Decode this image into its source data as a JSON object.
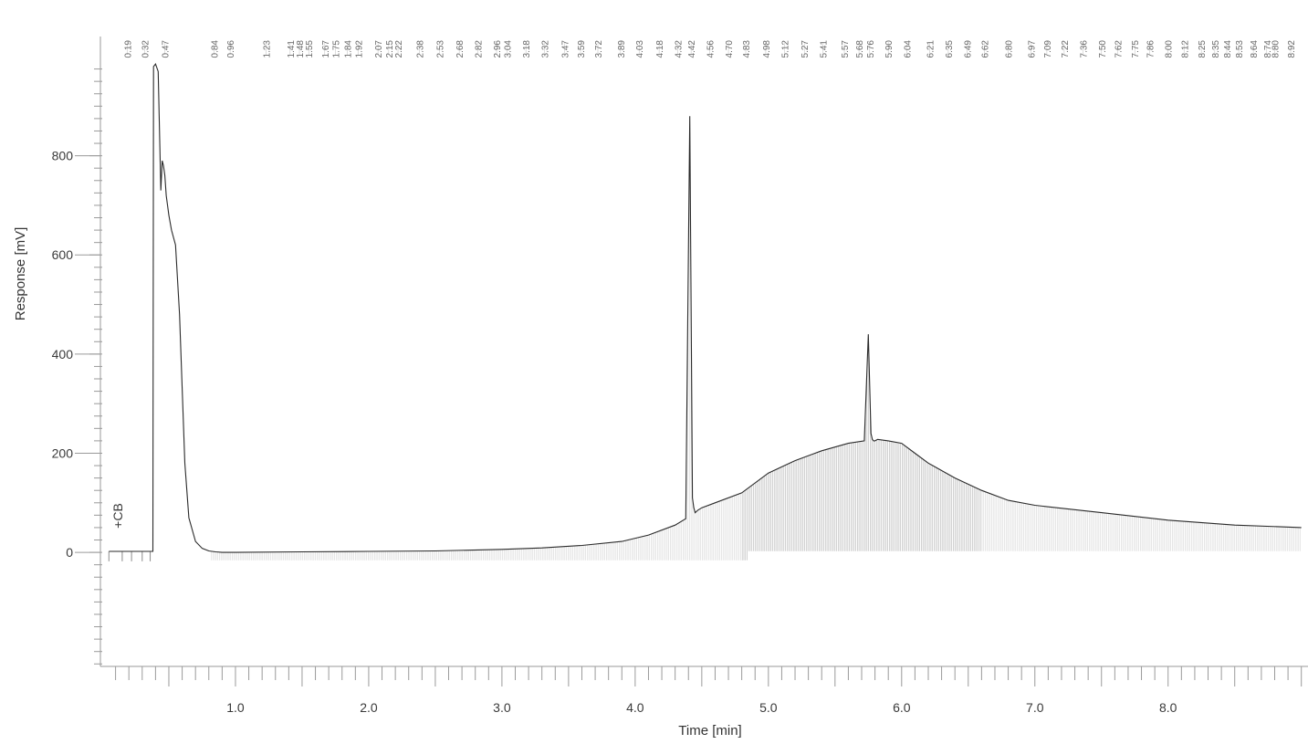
{
  "chart_data": {
    "type": "line",
    "xlabel": "Time [min]",
    "ylabel": "Response [mV]",
    "xlim": [
      0.0,
      9.05
    ],
    "ylim": [
      -230,
      1000
    ],
    "x_ticks": [
      "1.0",
      "2.0",
      "3.0",
      "4.0",
      "5.0",
      "6.0",
      "7.0",
      "8.0"
    ],
    "y_ticks": [
      "0",
      "200",
      "400",
      "600",
      "800"
    ],
    "annotation": "+CB",
    "grid": false,
    "series": [
      {
        "x": [
          0.05,
          0.38,
          0.385,
          0.4,
          0.42,
          0.44,
          0.45,
          0.46,
          0.47,
          0.48,
          0.5,
          0.52,
          0.55,
          0.58,
          0.6,
          0.62,
          0.65,
          0.7,
          0.75,
          0.8,
          0.85,
          0.9,
          1.0,
          1.5,
          2.0,
          2.5,
          3.0,
          3.3,
          3.6,
          3.9,
          4.1,
          4.3,
          4.38,
          4.41,
          4.43,
          4.44,
          4.45,
          4.47,
          4.5,
          4.6,
          4.8,
          5.0,
          5.2,
          5.4,
          5.6,
          5.72,
          5.75,
          5.77,
          5.78,
          5.79,
          5.8,
          5.82,
          5.9,
          6.0,
          6.1,
          6.2,
          6.4,
          6.6,
          6.8,
          7.0,
          7.5,
          8.0,
          8.5,
          9.0
        ],
        "y": [
          2,
          2,
          980,
          985,
          970,
          730,
          790,
          780,
          760,
          720,
          680,
          650,
          620,
          480,
          330,
          180,
          70,
          22,
          8,
          3,
          1,
          0,
          0,
          1,
          2,
          3,
          6,
          9,
          14,
          22,
          35,
          55,
          68,
          880,
          110,
          90,
          80,
          85,
          90,
          100,
          120,
          160,
          185,
          205,
          220,
          225,
          440,
          240,
          228,
          225,
          225,
          228,
          225,
          220,
          200,
          180,
          150,
          125,
          105,
          95,
          80,
          65,
          55,
          50
        ]
      }
    ],
    "peak_labels": [
      "0.19",
      "0.32",
      "0.47",
      "0.84",
      "0.96",
      "1.23",
      "1.41",
      "1.48",
      "1.55",
      "1.67",
      "1.75",
      "1.84",
      "1.92",
      "2.07",
      "2.15",
      "2.22",
      "2.38",
      "2.53",
      "2.68",
      "2.82",
      "2.96",
      "3.04",
      "3.18",
      "3.32",
      "3.47",
      "3.59",
      "3.72",
      "3.89",
      "4.03",
      "4.18",
      "4.32",
      "4.42",
      "4.56",
      "4.70",
      "4.83",
      "4.98",
      "5.12",
      "5.27",
      "5.41",
      "5.57",
      "5.68",
      "5.76",
      "5.90",
      "6.04",
      "6.21",
      "6.35",
      "6.49",
      "6.62",
      "6.80",
      "6.97",
      "7.09",
      "7.22",
      "7.36",
      "7.50",
      "7.62",
      "7.75",
      "7.86",
      "8.00",
      "8.12",
      "8.25",
      "8.35",
      "8.44",
      "8.53",
      "8.64",
      "8.74",
      "8.80",
      "8.92"
    ],
    "baseline_markers": [
      0.05,
      0.15,
      0.22,
      0.3,
      0.36
    ]
  }
}
